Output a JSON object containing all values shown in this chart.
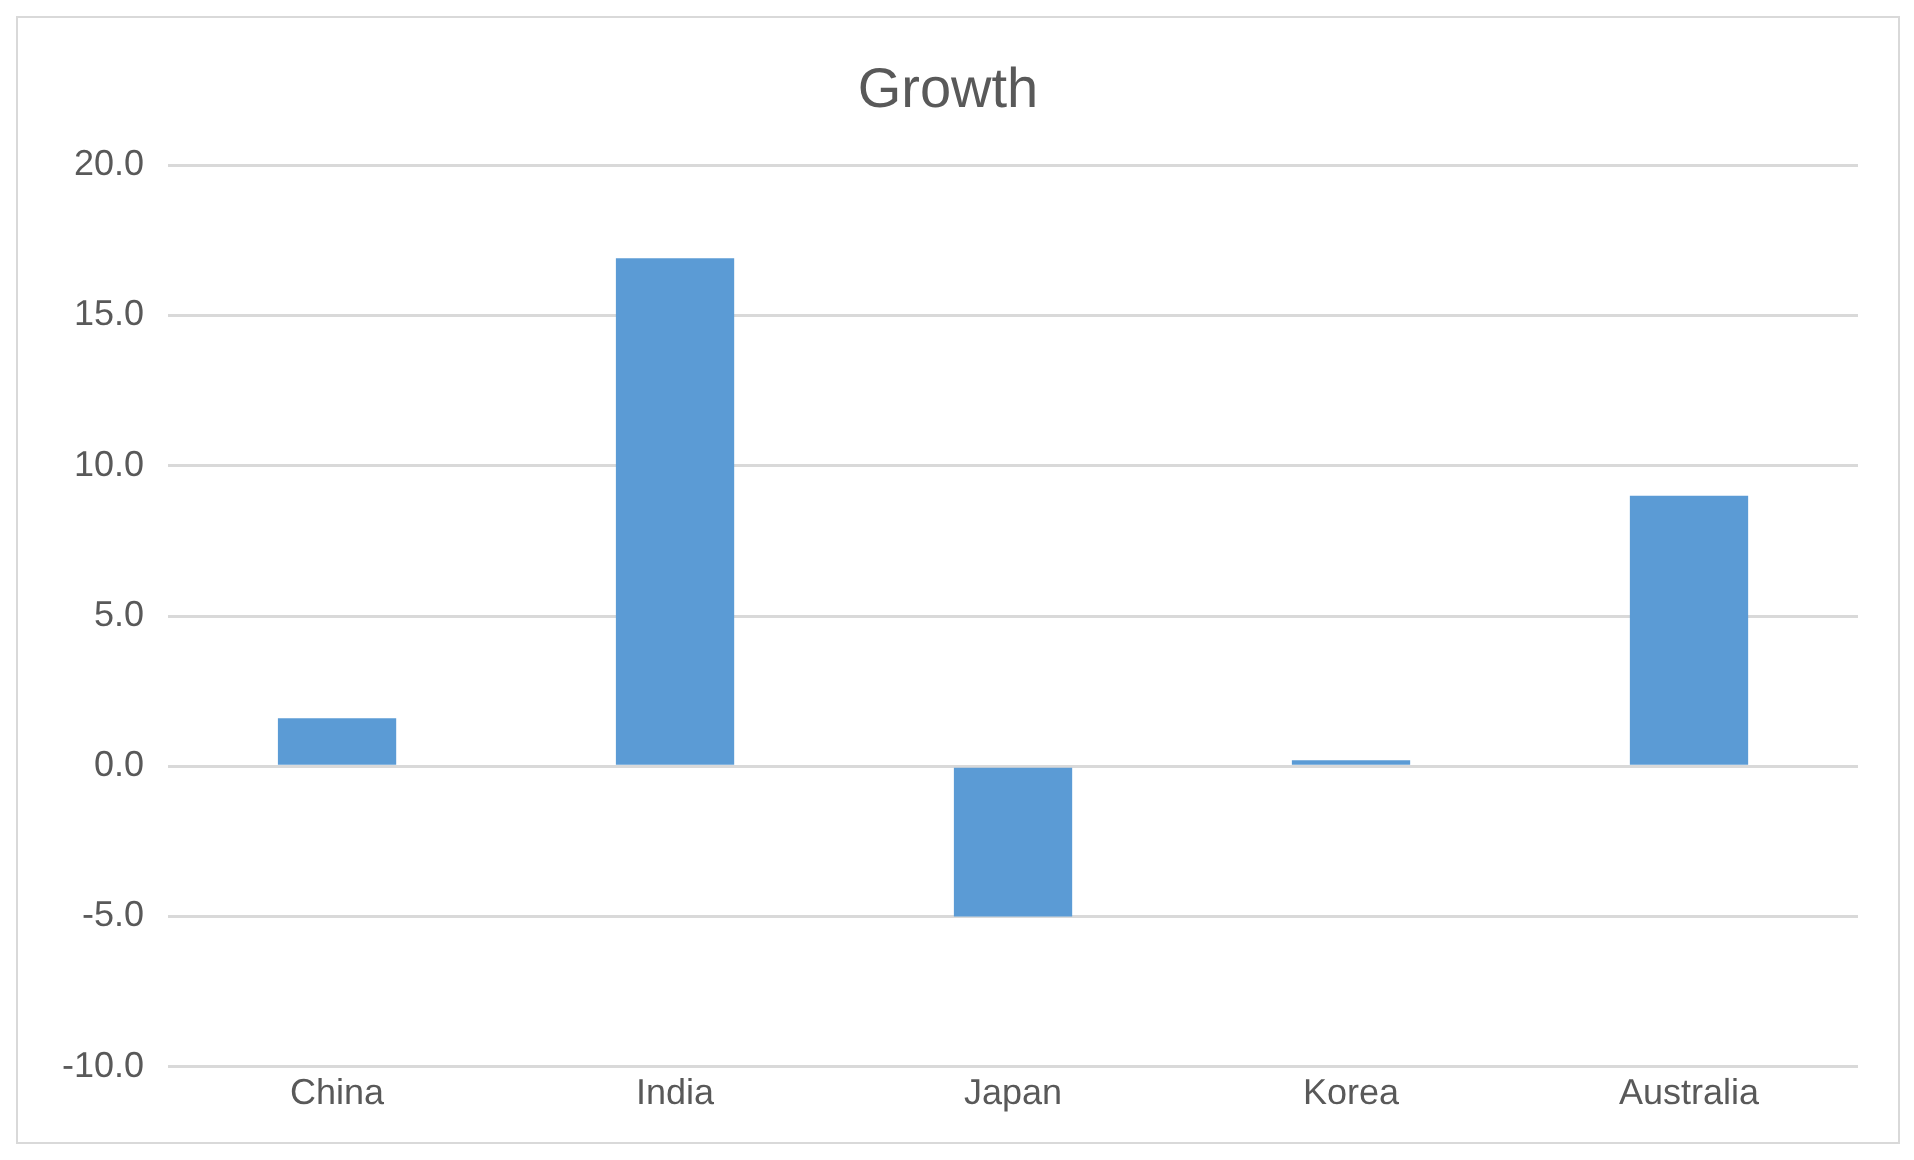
{
  "chart_data": {
    "type": "bar",
    "title": "Growth",
    "categories": [
      "China",
      "India",
      "Japan",
      "Korea",
      "Australia"
    ],
    "values": [
      1.6,
      16.9,
      -5.0,
      0.2,
      9.0
    ],
    "color": "#5b9bd5",
    "ylim": [
      -10,
      20
    ],
    "yticks": [
      {
        "value": -10,
        "label": "-10.0"
      },
      {
        "value": -5,
        "label": "-5.0"
      },
      {
        "value": 0,
        "label": "0.0"
      },
      {
        "value": 5,
        "label": "5.0"
      },
      {
        "value": 10,
        "label": "10.0"
      },
      {
        "value": 15,
        "label": "15.0"
      },
      {
        "value": 20,
        "label": "20.0"
      }
    ],
    "grid": "y"
  }
}
